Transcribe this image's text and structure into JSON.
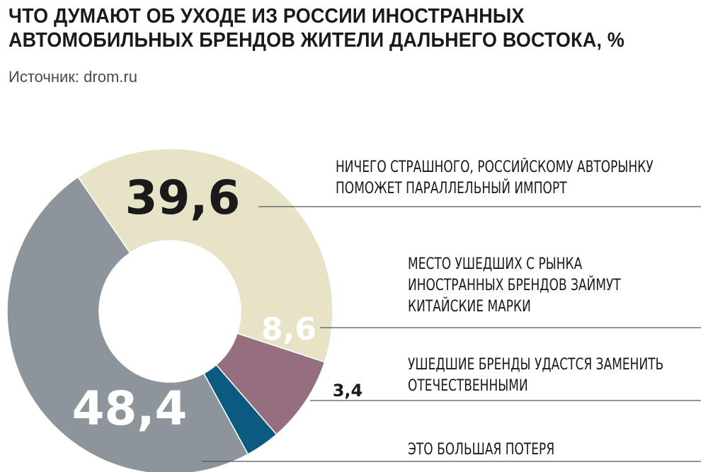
{
  "title": {
    "line1": "ЧТО ДУМАЮТ ОБ УХОДЕ ИЗ РОССИИ ИНОСТРАННЫХ",
    "line2": "АВТОМОБИЛЬНЫХ БРЕНДОВ ЖИТЕЛИ ДАЛЬНЕГО ВОСТОКА, %"
  },
  "source": "Источник: drom.ru",
  "chart_data": {
    "type": "pie",
    "variant": "donut",
    "title": "ЧТО ДУМАЮТ ОБ УХОДЕ ИЗ РОССИИ ИНОСТРАННЫХ АВТОМОБИЛЬНЫХ БРЕНДОВ ЖИТЕЛИ ДАЛЬНЕГО ВОСТОКА, %",
    "unit": "%",
    "slices": [
      {
        "value": 39.6,
        "value_label": "39,6",
        "label_lines": [
          "НИЧЕГО СТРАШНОГО, РОССИЙСКОМУ АВТОРЫНКУ",
          "ПОМОЖЕТ ПАРАЛЛЕЛЬНЫЙ ИМПОРТ"
        ],
        "color": "#e6e3c7"
      },
      {
        "value": 8.6,
        "value_label": "8,6",
        "label_lines": [
          "МЕСТО УШЕДШИХ С РЫНКА",
          "ИНОСТРАННЫХ БРЕНДОВ ЗАЙМУТ",
          "КИТАЙСКИЕ МАРКИ"
        ],
        "color": "#956f7f"
      },
      {
        "value": 3.4,
        "value_label": "3,4",
        "label_lines": [
          "УШЕДШИЕ БРЕНДЫ УДАСТСЯ ЗАМЕНИТЬ",
          "ОТЕЧЕСТВЕННЫМИ"
        ],
        "color": "#0b5a80"
      },
      {
        "value": 48.4,
        "value_label": "48,4",
        "label_lines": [
          "ЭТО БОЛЬШАЯ ПОТЕРЯ"
        ],
        "color": "#8c959c"
      }
    ],
    "colors": {
      "leader_line": "#555555",
      "dark_text": "#1a1a1a",
      "light_text": "#ffffff"
    }
  }
}
